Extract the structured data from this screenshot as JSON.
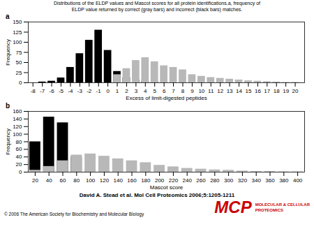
{
  "title": "Distributions of the ELDP values and Mascot scores for all protein identifications.a, frequency of",
  "subtitle": "ELDP value returned by correct (gray bars) and incorrect (black bars) matches.",
  "annotations": [
    {
      "text": "David A. Stead et al. Mol Cell Proteomics 2006;5:1205-1211"
    },
    {
      "text": "MCP",
      "color": "#cc0000"
    },
    {
      "text": "MOLECULAR & CELLULAR",
      "color": "#cc0000"
    },
    {
      "text": "PROTEOMICS",
      "color": "#cc0000"
    },
    {
      "text": "© 2006 The American Society for Biochemistry and Molecular Biology"
    }
  ],
  "chart_data": [
    {
      "type": "bar",
      "title": "a",
      "xlabel": "Excess of limit-digested peptides",
      "ylabel": "Frequency",
      "xlim": [
        -8.5,
        21
      ],
      "ylim": [
        0,
        150
      ],
      "xticks": [
        -8,
        -7,
        -6,
        -5,
        -4,
        -3,
        -2,
        -1,
        0,
        1,
        2,
        3,
        4,
        5,
        6,
        7,
        8,
        9,
        10,
        11,
        12,
        13,
        14,
        15,
        16,
        17,
        18,
        19,
        20
      ],
      "yticks": [
        0,
        25,
        50,
        75,
        100,
        125,
        150
      ],
      "series": [
        {
          "color": "#000000",
          "x": [
            -7,
            -6,
            -5,
            -4,
            -3,
            -2,
            -1,
            0,
            1,
            2,
            3,
            4,
            5
          ],
          "values": [
            2,
            4,
            12,
            38,
            72,
            105,
            130,
            80,
            28,
            13,
            7,
            4,
            2
          ]
        },
        {
          "color": "#b8b8b8",
          "x": [
            1,
            2,
            3,
            4,
            5,
            6,
            7,
            8,
            9,
            10,
            11,
            12,
            13,
            14,
            15,
            16,
            17,
            18,
            19,
            20
          ],
          "values": [
            20,
            35,
            55,
            62,
            52,
            42,
            38,
            32,
            20,
            16,
            13,
            11,
            9,
            7,
            5,
            4,
            3,
            2,
            1,
            1
          ]
        }
      ]
    },
    {
      "type": "bar",
      "title": "b",
      "xlabel": "Mascot score",
      "ylabel": "Frequency",
      "xlim": [
        10,
        410
      ],
      "ylim": [
        0,
        160
      ],
      "xticks": [
        20,
        40,
        60,
        80,
        100,
        120,
        140,
        160,
        180,
        200,
        220,
        240,
        260,
        280,
        300,
        320,
        340,
        360,
        380,
        400
      ],
      "yticks": [
        0,
        20,
        40,
        60,
        80,
        100,
        120,
        140,
        160
      ],
      "series": [
        {
          "color": "#000000",
          "x": [
            20,
            40,
            60,
            80,
            100,
            120
          ],
          "values": [
            80,
            145,
            130,
            40,
            2,
            1
          ]
        },
        {
          "color": "#b8b8b8",
          "x": [
            20,
            40,
            60,
            80,
            100,
            120,
            140,
            160,
            180,
            200,
            220,
            240,
            260,
            280,
            300,
            320,
            340,
            360,
            380,
            400
          ],
          "values": [
            5,
            15,
            30,
            45,
            48,
            42,
            35,
            30,
            25,
            18,
            14,
            10,
            8,
            6,
            5,
            3,
            2,
            2,
            1,
            1
          ]
        }
      ]
    }
  ]
}
